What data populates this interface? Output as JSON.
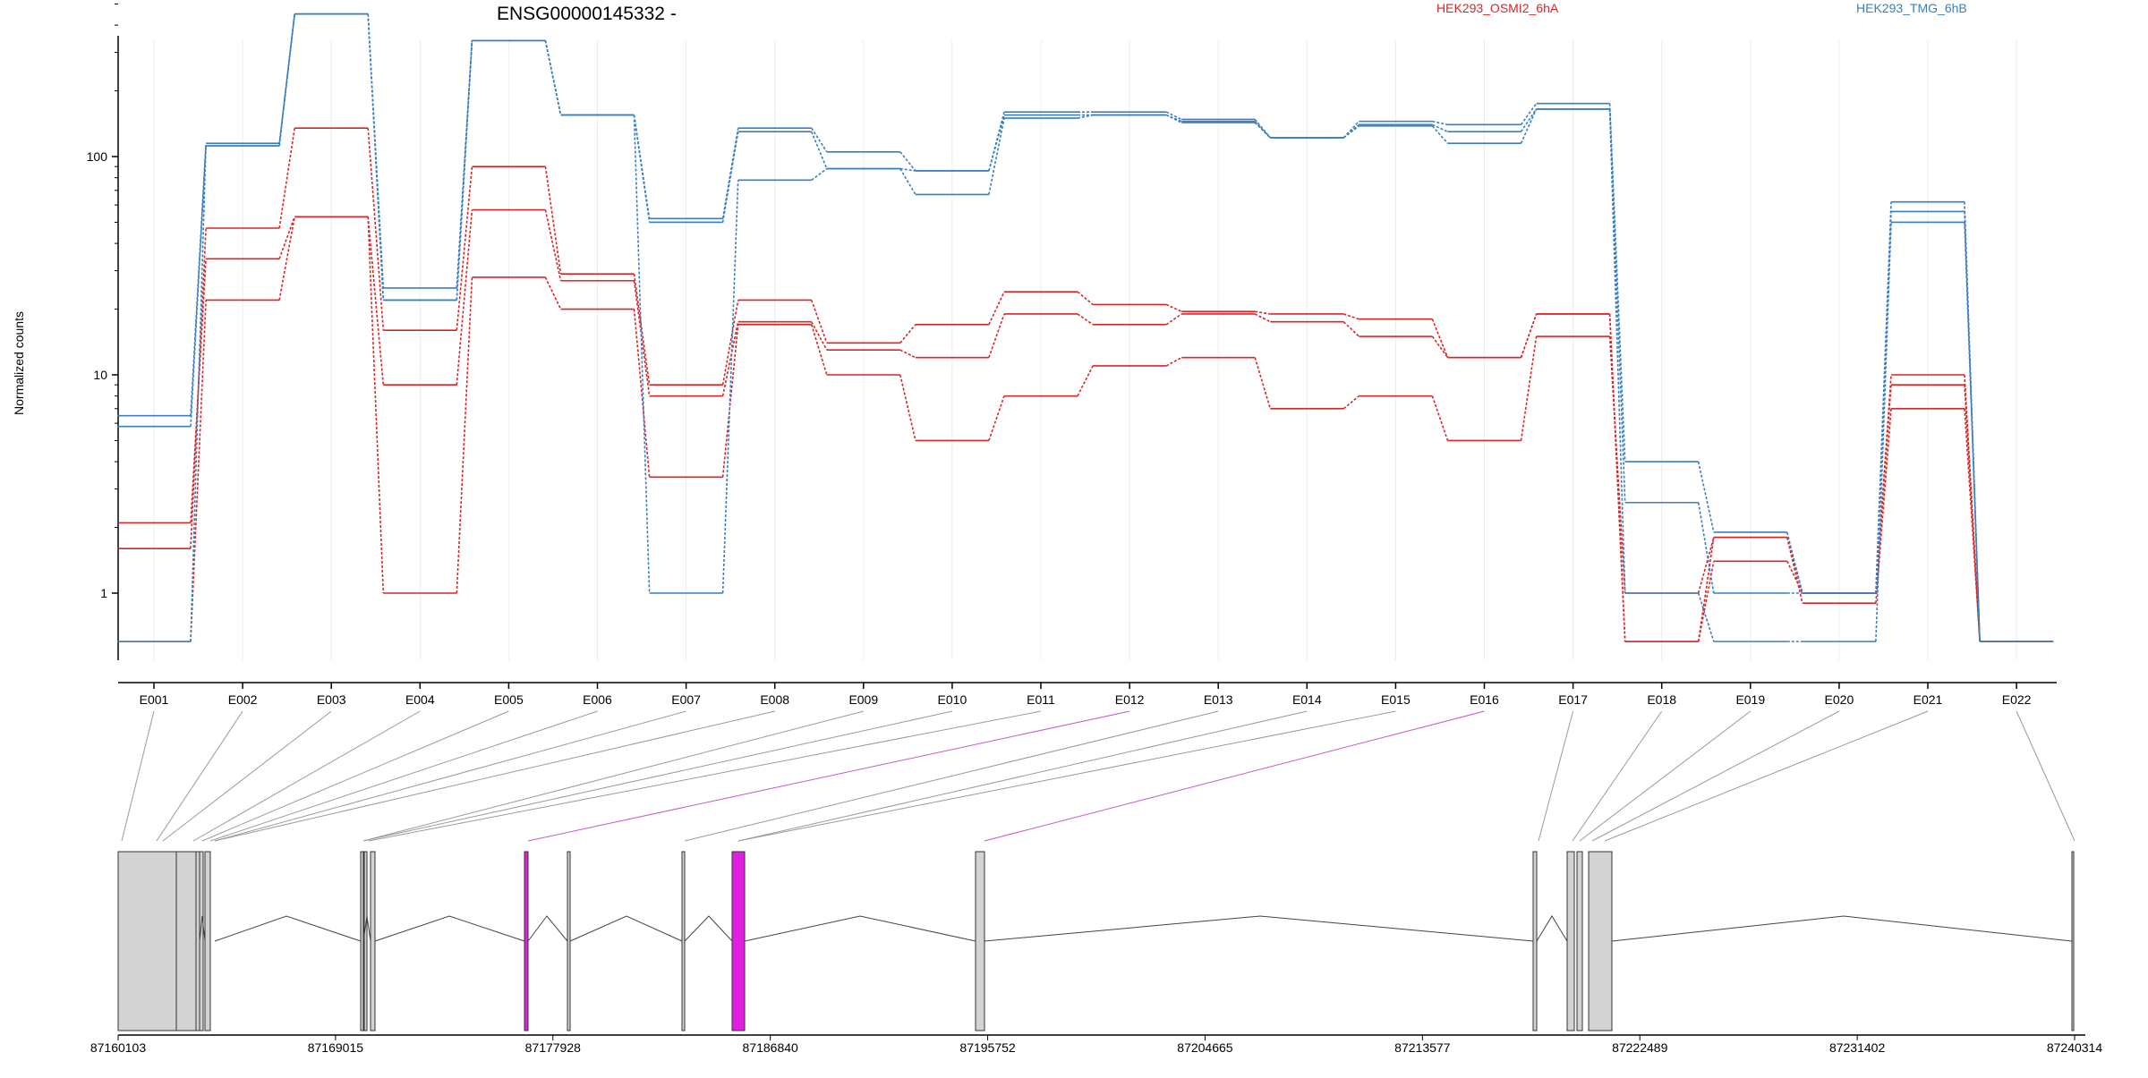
{
  "chart_data": {
    "type": "line",
    "title": "ENSG00000145332 -",
    "xlabel": "",
    "ylabel": "Normalized counts",
    "yscale": "log",
    "ylim": [
      0.6,
      550
    ],
    "grid": "vertical",
    "legend_placement": "top",
    "categories": [
      "E001",
      "E002",
      "E003",
      "E004",
      "E005",
      "E006",
      "E007",
      "E008",
      "E009",
      "E010",
      "E011",
      "E012",
      "E013",
      "E014",
      "E015",
      "E016",
      "E017",
      "E018",
      "E019",
      "E020",
      "E021",
      "E022"
    ],
    "yticks": [
      "1",
      "10",
      "100"
    ],
    "groups": [
      {
        "name": "HEK293_OSMI2_6hA",
        "color": "#d62728"
      },
      {
        "name": "HEK293_TMG_6hB",
        "color": "#3a7ebf"
      }
    ],
    "series": [
      {
        "group": 0,
        "values": [
          1.6,
          47,
          135,
          16,
          90,
          29,
          9.0,
          22,
          14,
          17,
          24,
          21,
          19.5,
          19,
          18,
          12,
          19,
          0.6,
          1.8,
          1.0,
          10,
          0.6
        ]
      },
      {
        "group": 0,
        "values": [
          2.1,
          34,
          53,
          9.0,
          57,
          27,
          8.0,
          17.5,
          13,
          12,
          19,
          17,
          19,
          17.5,
          15,
          12,
          19,
          0.6,
          1.4,
          1.0,
          9.0,
          0.6
        ]
      },
      {
        "group": 0,
        "values": [
          0.6,
          22,
          53,
          1.0,
          28,
          20,
          3.4,
          17,
          10,
          5,
          8,
          11,
          12,
          7,
          8,
          5,
          15,
          1.0,
          1.8,
          0.9,
          7,
          0.6
        ]
      },
      {
        "group": 1,
        "values": [
          6.5,
          115,
          450,
          25,
          340,
          155,
          52,
          135,
          105,
          86,
          160,
          160,
          148,
          122,
          145,
          140,
          175,
          4.0,
          1.9,
          1.0,
          62,
          0.6
        ]
      },
      {
        "group": 1,
        "values": [
          5.8,
          112,
          450,
          22,
          340,
          155,
          50,
          130,
          88,
          86,
          155,
          155,
          145,
          122,
          140,
          130,
          165,
          2.6,
          1.0,
          1.0,
          56,
          0.6
        ]
      },
      {
        "group": 1,
        "values": [
          0.6,
          112,
          450,
          22,
          340,
          155,
          1.0,
          78,
          88,
          67,
          150,
          155,
          143,
          122,
          138,
          115,
          165,
          1.0,
          0.6,
          0.6,
          50,
          0.6
        ]
      }
    ],
    "genome_axis_ticks": [
      "87160103",
      "87169015",
      "87177928",
      "87186840",
      "87195752",
      "87204665",
      "87213577",
      "87222489",
      "87231402",
      "87240314"
    ],
    "highlight_color": "#e020e0"
  }
}
